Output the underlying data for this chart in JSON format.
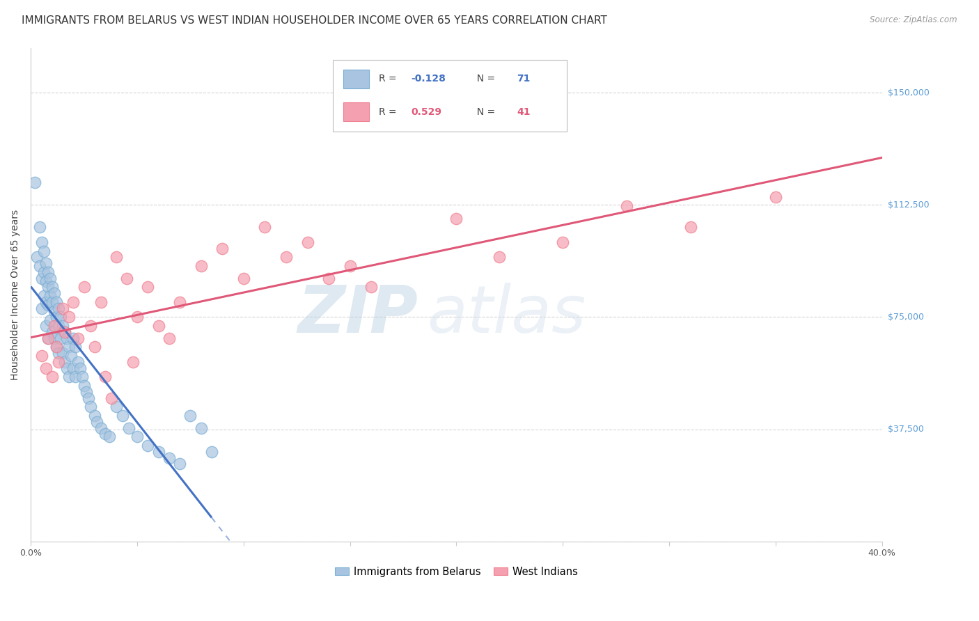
{
  "title": "IMMIGRANTS FROM BELARUS VS WEST INDIAN HOUSEHOLDER INCOME OVER 65 YEARS CORRELATION CHART",
  "source": "Source: ZipAtlas.com",
  "ylabel": "Householder Income Over 65 years",
  "x_min": 0.0,
  "x_max": 0.4,
  "y_min": 0,
  "y_max": 165000,
  "x_ticks": [
    0.0,
    0.05,
    0.1,
    0.15,
    0.2,
    0.25,
    0.3,
    0.35,
    0.4
  ],
  "y_ticks": [
    0,
    37500,
    75000,
    112500,
    150000
  ],
  "y_tick_labels": [
    "",
    "$37,500",
    "$75,000",
    "$112,500",
    "$150,000"
  ],
  "watermark_zip": "ZIP",
  "watermark_atlas": "atlas",
  "blue_color": "#7bafd4",
  "blue_face": "#a8c4e0",
  "pink_color": "#f08090",
  "pink_face": "#f4a0b0",
  "line_blue": "#4472c4",
  "line_pink": "#e05878",
  "title_fontsize": 11,
  "axis_label_fontsize": 10,
  "tick_fontsize": 9,
  "background_color": "#ffffff",
  "grid_color": "#d0d0d0",
  "right_tick_color": "#5b9bd5",
  "blue_R": "-0.128",
  "blue_N": "71",
  "pink_R": "0.529",
  "pink_N": "41",
  "blue_x": [
    0.002,
    0.003,
    0.004,
    0.004,
    0.005,
    0.005,
    0.005,
    0.006,
    0.006,
    0.006,
    0.007,
    0.007,
    0.007,
    0.007,
    0.008,
    0.008,
    0.008,
    0.008,
    0.009,
    0.009,
    0.009,
    0.01,
    0.01,
    0.01,
    0.011,
    0.011,
    0.011,
    0.012,
    0.012,
    0.012,
    0.013,
    0.013,
    0.013,
    0.014,
    0.014,
    0.015,
    0.015,
    0.016,
    0.016,
    0.017,
    0.017,
    0.018,
    0.018,
    0.019,
    0.02,
    0.02,
    0.021,
    0.021,
    0.022,
    0.023,
    0.024,
    0.025,
    0.026,
    0.027,
    0.028,
    0.03,
    0.031,
    0.033,
    0.035,
    0.037,
    0.04,
    0.043,
    0.046,
    0.05,
    0.055,
    0.06,
    0.065,
    0.07,
    0.075,
    0.08,
    0.085
  ],
  "blue_y": [
    120000,
    95000,
    105000,
    92000,
    100000,
    88000,
    78000,
    97000,
    90000,
    82000,
    93000,
    87000,
    80000,
    72000,
    90000,
    85000,
    79000,
    68000,
    88000,
    82000,
    74000,
    85000,
    80000,
    70000,
    83000,
    77000,
    68000,
    80000,
    75000,
    65000,
    78000,
    72000,
    63000,
    75000,
    68000,
    72000,
    63000,
    70000,
    60000,
    68000,
    58000,
    65000,
    55000,
    62000,
    68000,
    58000,
    65000,
    55000,
    60000,
    58000,
    55000,
    52000,
    50000,
    48000,
    45000,
    42000,
    40000,
    38000,
    36000,
    35000,
    45000,
    42000,
    38000,
    35000,
    32000,
    30000,
    28000,
    26000,
    42000,
    38000,
    30000
  ],
  "pink_x": [
    0.005,
    0.007,
    0.008,
    0.01,
    0.011,
    0.012,
    0.013,
    0.015,
    0.016,
    0.018,
    0.02,
    0.022,
    0.025,
    0.028,
    0.03,
    0.033,
    0.035,
    0.038,
    0.04,
    0.045,
    0.048,
    0.05,
    0.055,
    0.06,
    0.065,
    0.07,
    0.08,
    0.09,
    0.1,
    0.11,
    0.12,
    0.13,
    0.14,
    0.15,
    0.16,
    0.2,
    0.22,
    0.25,
    0.28,
    0.31,
    0.35
  ],
  "pink_y": [
    62000,
    58000,
    68000,
    55000,
    72000,
    65000,
    60000,
    78000,
    70000,
    75000,
    80000,
    68000,
    85000,
    72000,
    65000,
    80000,
    55000,
    48000,
    95000,
    88000,
    60000,
    75000,
    85000,
    72000,
    68000,
    80000,
    92000,
    98000,
    88000,
    105000,
    95000,
    100000,
    88000,
    92000,
    85000,
    108000,
    95000,
    100000,
    112000,
    105000,
    115000
  ]
}
